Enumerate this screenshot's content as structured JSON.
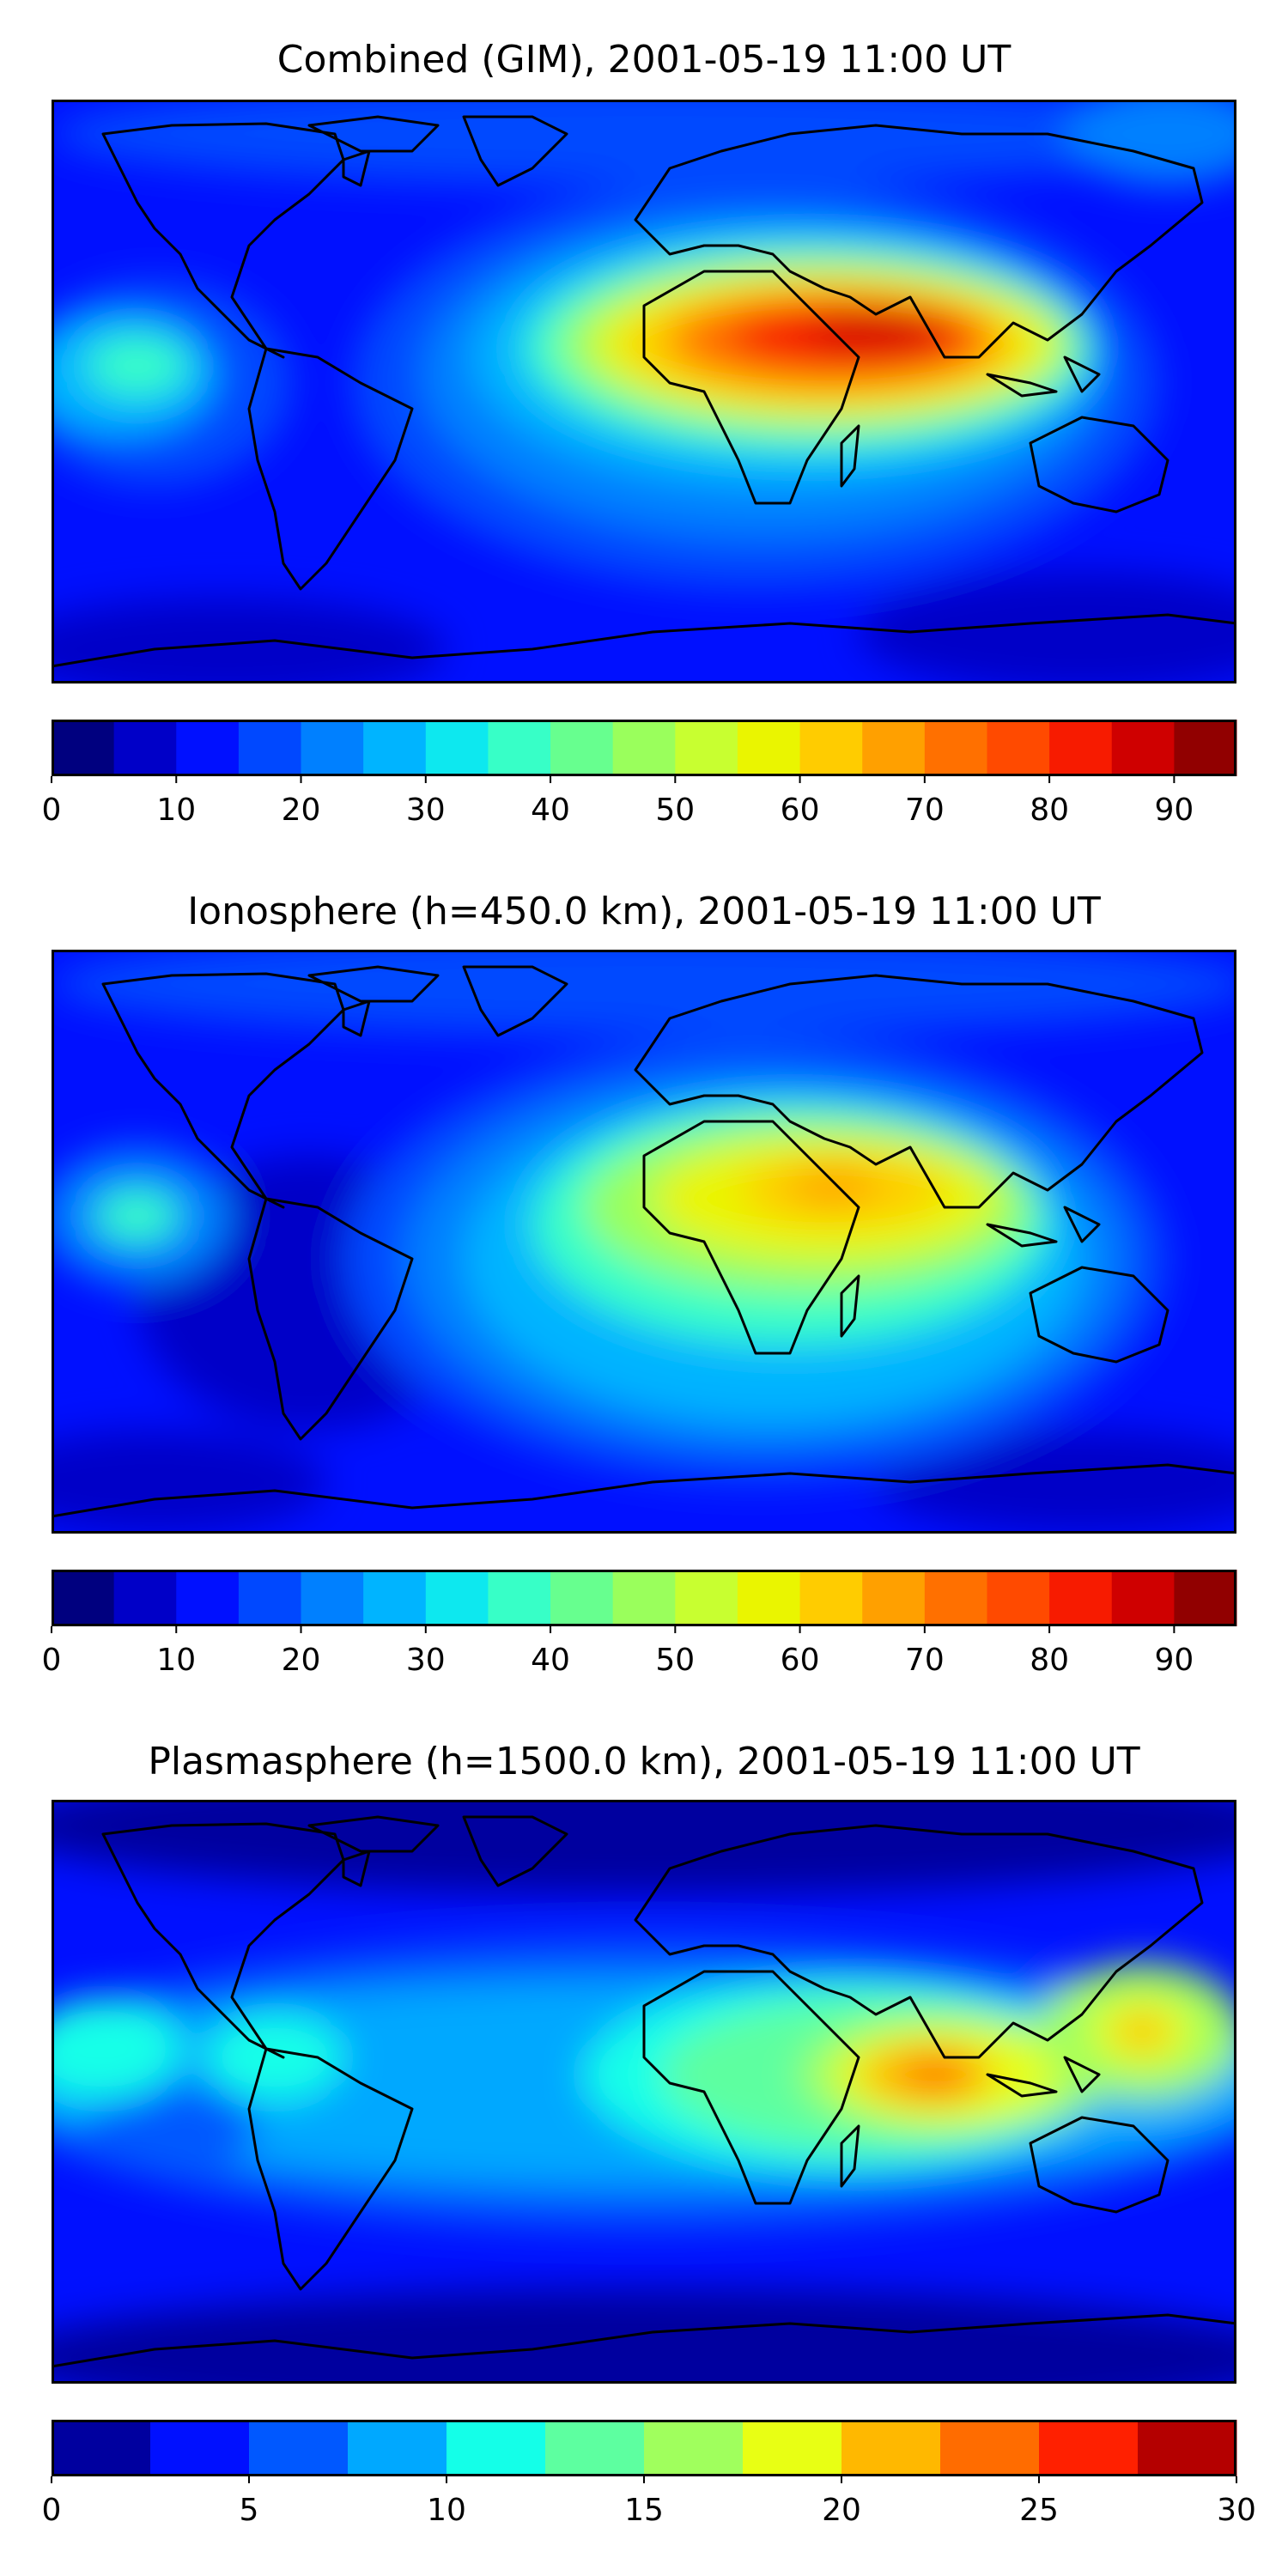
{
  "figure": {
    "panels": [
      {
        "id": "combined",
        "title": "Combined (GIM), 2001-05-19 11:00 UT",
        "colorbar": {
          "levels": [
            0,
            5,
            10,
            15,
            20,
            25,
            30,
            35,
            40,
            45,
            50,
            55,
            60,
            65,
            70,
            75,
            80,
            85,
            90,
            95
          ],
          "ticks": [
            "0",
            "10",
            "20",
            "30",
            "40",
            "50",
            "60",
            "70",
            "80",
            "90"
          ],
          "tick_values": [
            0,
            10,
            20,
            30,
            40,
            50,
            60,
            70,
            80,
            90
          ],
          "colors": [
            "#00007f",
            "#0000c8",
            "#0010ff",
            "#0048ff",
            "#0080ff",
            "#00b4ff",
            "#0de8ef",
            "#37ffc7",
            "#67ff8f",
            "#9aff5c",
            "#c8ff30",
            "#eaf500",
            "#ffcc00",
            "#ffa000",
            "#ff7000",
            "#ff4a00",
            "#f71b00",
            "#cf0000",
            "#910000"
          ]
        }
      },
      {
        "id": "ionosphere",
        "title": "Ionosphere  (h=450.0 km), 2001-05-19 11:00 UT",
        "colorbar": {
          "levels": [
            0,
            5,
            10,
            15,
            20,
            25,
            30,
            35,
            40,
            45,
            50,
            55,
            60,
            65,
            70,
            75,
            80,
            85,
            90,
            95
          ],
          "ticks": [
            "0",
            "10",
            "20",
            "30",
            "40",
            "50",
            "60",
            "70",
            "80",
            "90"
          ],
          "tick_values": [
            0,
            10,
            20,
            30,
            40,
            50,
            60,
            70,
            80,
            90
          ],
          "colors": [
            "#00007f",
            "#0000c8",
            "#0010ff",
            "#0048ff",
            "#0080ff",
            "#00b4ff",
            "#0de8ef",
            "#37ffc7",
            "#67ff8f",
            "#9aff5c",
            "#c8ff30",
            "#eaf500",
            "#ffcc00",
            "#ffa000",
            "#ff7000",
            "#ff4a00",
            "#f71b00",
            "#cf0000",
            "#910000"
          ]
        }
      },
      {
        "id": "plasmasphere",
        "title": "Plasmasphere (h=1500.0 km), 2001-05-19 11:00 UT",
        "colorbar": {
          "levels": [
            0,
            2.5,
            5,
            7.5,
            10,
            12.5,
            15,
            17.5,
            20,
            22.5,
            25,
            27.5,
            30
          ],
          "ticks": [
            "0",
            "5",
            "10",
            "15",
            "20",
            "25",
            "30"
          ],
          "tick_values": [
            0,
            5,
            10,
            15,
            20,
            25,
            30
          ],
          "colors": [
            "#00009f",
            "#0010ff",
            "#0058ff",
            "#00a8ff",
            "#14ffe8",
            "#5dffa0",
            "#a0ff5d",
            "#e8ff14",
            "#ffb800",
            "#ff6c00",
            "#ff2000",
            "#b40000"
          ]
        }
      }
    ]
  }
}
